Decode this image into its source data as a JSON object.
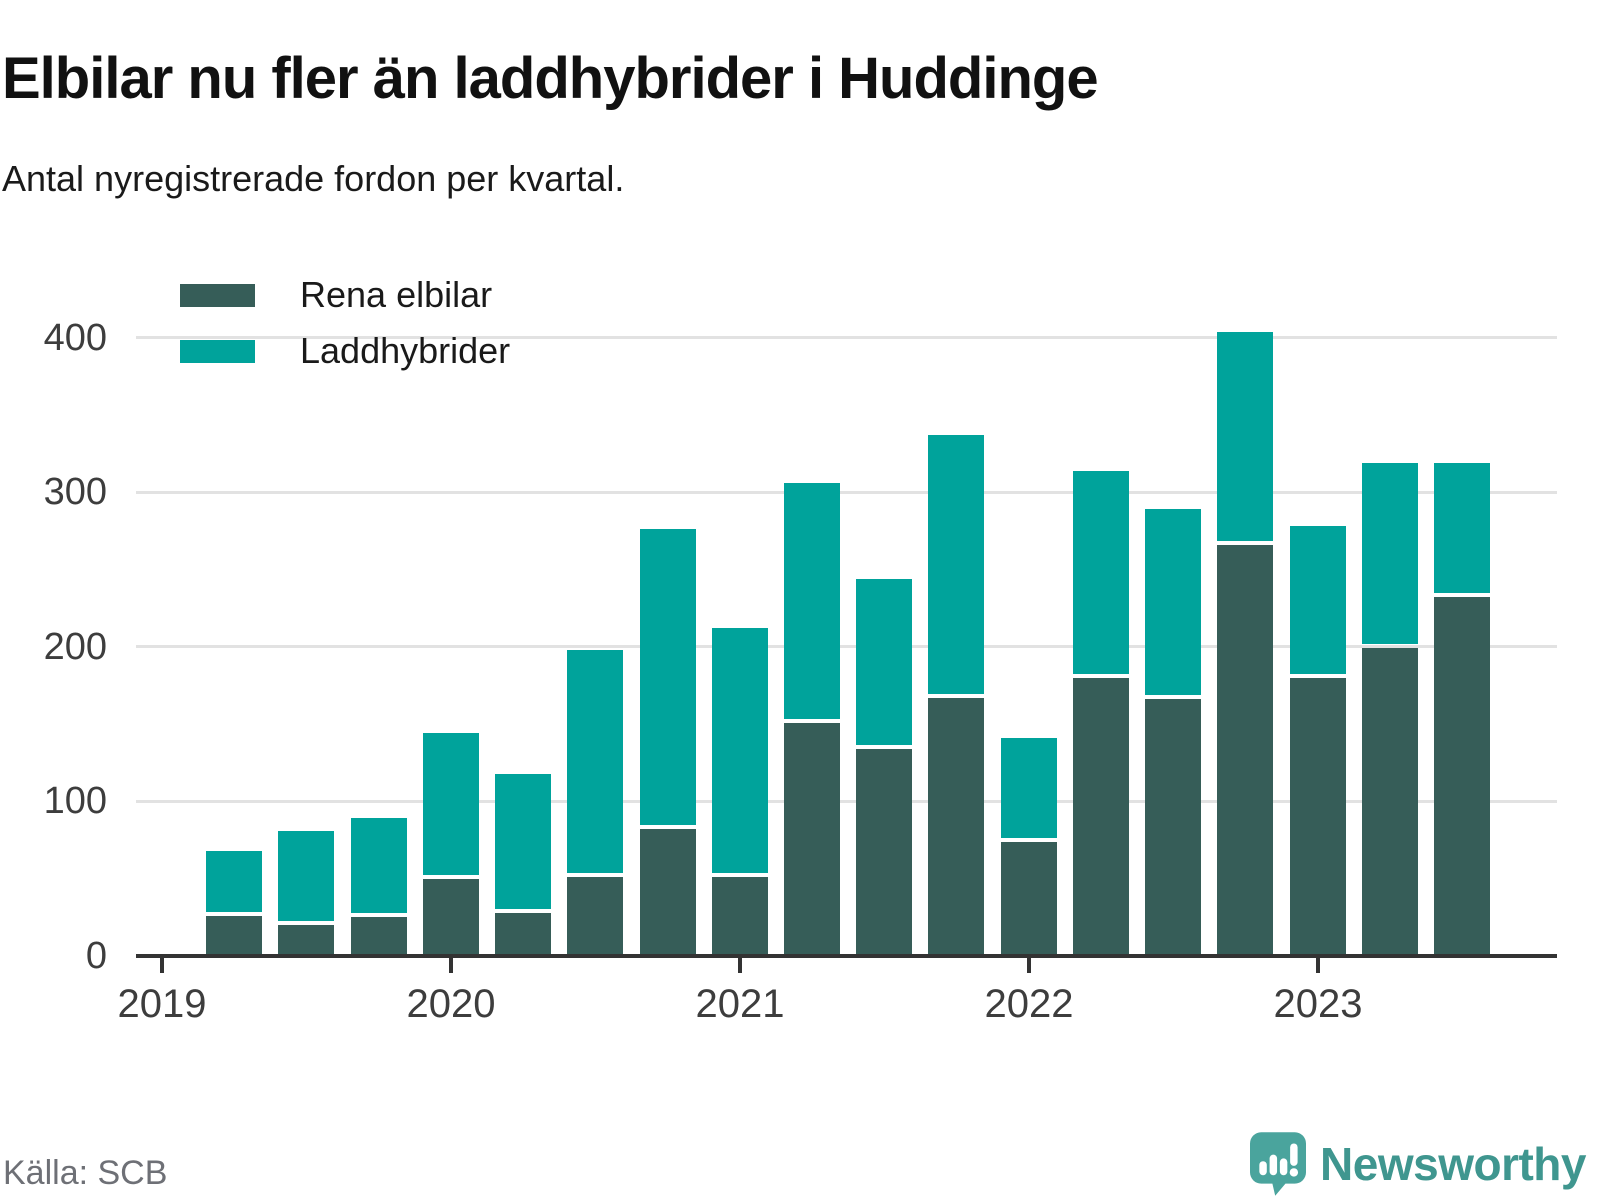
{
  "header": {
    "title": "Elbilar nu fler än laddhybrider i Huddinge",
    "subtitle": "Antal nyregistrerade fordon per kvartal."
  },
  "legend": {
    "items": [
      {
        "label": "Rena elbilar",
        "color": "#365d58"
      },
      {
        "label": "Laddhybrider",
        "color": "#00a39b"
      }
    ]
  },
  "footer": {
    "source": "Källa: SCB",
    "brand": "Newsworthy"
  },
  "colors": {
    "rena_elbilar": "#365d58",
    "laddhybrider": "#00a39b",
    "axis": "#333333",
    "grid": "#e2e2e2",
    "logo_teal": "#4aa49d",
    "wordmark_teal": "#3f968f"
  },
  "chart_data": {
    "type": "bar",
    "stacked": true,
    "title": "Elbilar nu fler än laddhybrider i Huddinge",
    "subtitle": "Antal nyregistrerade fordon per kvartal.",
    "xlabel": "",
    "ylabel": "",
    "categories": [
      "2019 K2",
      "2019 K3",
      "2019 K4",
      "2020 K1",
      "2020 K2",
      "2020 K3",
      "2020 K4",
      "2021 K1",
      "2021 K2",
      "2021 K3",
      "2021 K4",
      "2022 K1",
      "2022 K2",
      "2022 K3",
      "2022 K4",
      "2023 K1",
      "2023 K2",
      "2023 K3"
    ],
    "series": [
      {
        "name": "Rena elbilar",
        "color": "#365d58",
        "values": [
          26,
          20,
          25,
          50,
          28,
          51,
          82,
          51,
          151,
          134,
          167,
          74,
          180,
          166,
          266,
          180,
          199,
          232
        ]
      },
      {
        "name": "Laddhybrider",
        "color": "#00a39b",
        "values": [
          42,
          61,
          64,
          94,
          90,
          147,
          194,
          161,
          155,
          110,
          170,
          67,
          134,
          123,
          138,
          98,
          120,
          87
        ]
      }
    ],
    "totals": [
      68,
      81,
      89,
      144,
      118,
      198,
      276,
      212,
      306,
      244,
      337,
      141,
      314,
      289,
      404,
      278,
      319,
      319
    ],
    "yticks": [
      0,
      100,
      200,
      300,
      400
    ],
    "xticks": [
      "2019",
      "2020",
      "2021",
      "2022",
      "2023"
    ],
    "ylim": [
      0,
      430
    ],
    "grid": true,
    "legend_position": "top-left"
  }
}
